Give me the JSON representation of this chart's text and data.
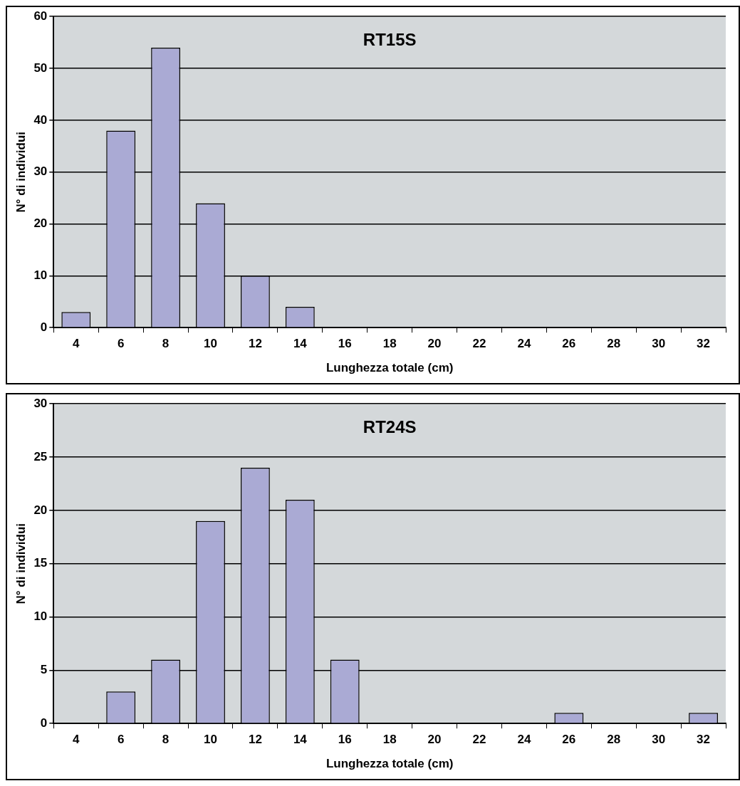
{
  "chart_data": [
    {
      "type": "bar",
      "title": "RT15S",
      "xlabel": "Lunghezza totale (cm)",
      "ylabel": "N° di individui",
      "categories": [
        "4",
        "6",
        "8",
        "10",
        "12",
        "14",
        "16",
        "18",
        "20",
        "22",
        "24",
        "26",
        "28",
        "30",
        "32"
      ],
      "values": [
        3,
        38,
        54,
        24,
        10,
        4,
        0,
        0,
        0,
        0,
        0,
        0,
        0,
        0,
        0
      ],
      "color": "#aaaad4",
      "ylim": [
        0,
        60
      ],
      "yticks": [
        0,
        10,
        20,
        30,
        40,
        50,
        60
      ],
      "grid": "y"
    },
    {
      "type": "bar",
      "title": "RT24S",
      "xlabel": "Lunghezza totale (cm)",
      "ylabel": "N° di individui",
      "categories": [
        "4",
        "6",
        "8",
        "10",
        "12",
        "14",
        "16",
        "18",
        "20",
        "22",
        "24",
        "26",
        "28",
        "30",
        "32"
      ],
      "values": [
        0,
        3,
        6,
        19,
        24,
        21,
        6,
        0,
        0,
        0,
        0,
        1,
        0,
        0,
        1
      ],
      "color": "#aaaad4",
      "ylim": [
        0,
        30
      ],
      "yticks": [
        0,
        5,
        10,
        15,
        20,
        25,
        30
      ],
      "grid": "y"
    }
  ]
}
